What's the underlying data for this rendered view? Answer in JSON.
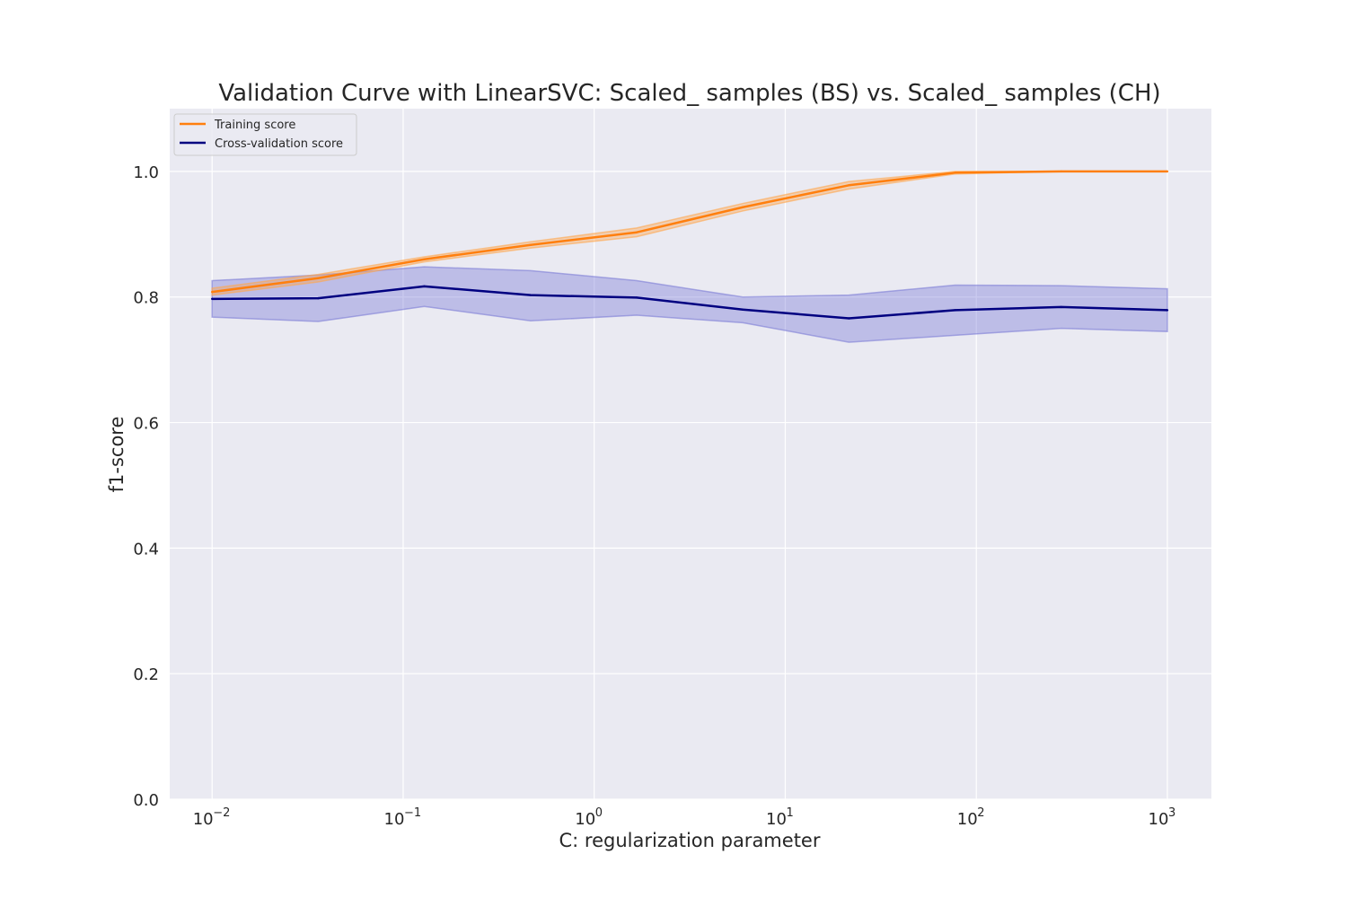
{
  "chart_data": {
    "type": "line",
    "title": "Validation Curve with LinearSVC: Scaled_ samples (BS) vs. Scaled_ samples (CH)",
    "xlabel": "C: regularization parameter",
    "ylabel": "f1-score",
    "x_scale": "log",
    "xlim": [
      0.006,
      1700
    ],
    "ylim": [
      0.0,
      1.1
    ],
    "grid": true,
    "legend_position": "top-left",
    "x_ticks": [
      {
        "value": 0.01,
        "mantissa": "10",
        "exponent": "−2"
      },
      {
        "value": 0.1,
        "mantissa": "10",
        "exponent": "−1"
      },
      {
        "value": 1,
        "mantissa": "10",
        "exponent": "0"
      },
      {
        "value": 10,
        "mantissa": "10",
        "exponent": "1"
      },
      {
        "value": 100,
        "mantissa": "10",
        "exponent": "2"
      },
      {
        "value": 1000,
        "mantissa": "10",
        "exponent": "3"
      }
    ],
    "y_ticks": [
      {
        "value": 0.0,
        "label": "0.0"
      },
      {
        "value": 0.2,
        "label": "0.2"
      },
      {
        "value": 0.4,
        "label": "0.4"
      },
      {
        "value": 0.6,
        "label": "0.6"
      },
      {
        "value": 0.8,
        "label": "0.8"
      },
      {
        "value": 1.0,
        "label": "1.0"
      }
    ],
    "x": [
      0.01,
      0.0359,
      0.129,
      0.464,
      1.668,
      5.995,
      21.54,
      77.43,
      278.3,
      1000
    ],
    "series": [
      {
        "name": "Training score",
        "color": "#ff7f0e",
        "band_color": "#ffa64d",
        "values": [
          0.808,
          0.83,
          0.86,
          0.883,
          0.903,
          0.943,
          0.978,
          0.998,
          1.0,
          1.0
        ],
        "lower": [
          0.803,
          0.824,
          0.856,
          0.878,
          0.896,
          0.937,
          0.972,
          0.996,
          1.0,
          1.0
        ],
        "upper": [
          0.814,
          0.836,
          0.864,
          0.888,
          0.91,
          0.949,
          0.984,
          1.0,
          1.0,
          1.0
        ]
      },
      {
        "name": "Cross-validation score",
        "color": "#000080",
        "band_color": "#7b7bd6",
        "values": [
          0.797,
          0.798,
          0.817,
          0.803,
          0.799,
          0.78,
          0.766,
          0.779,
          0.784,
          0.779
        ],
        "lower": [
          0.768,
          0.761,
          0.785,
          0.762,
          0.771,
          0.759,
          0.728,
          0.739,
          0.75,
          0.745
        ],
        "upper": [
          0.826,
          0.835,
          0.848,
          0.842,
          0.826,
          0.8,
          0.803,
          0.819,
          0.818,
          0.813
        ]
      }
    ]
  }
}
